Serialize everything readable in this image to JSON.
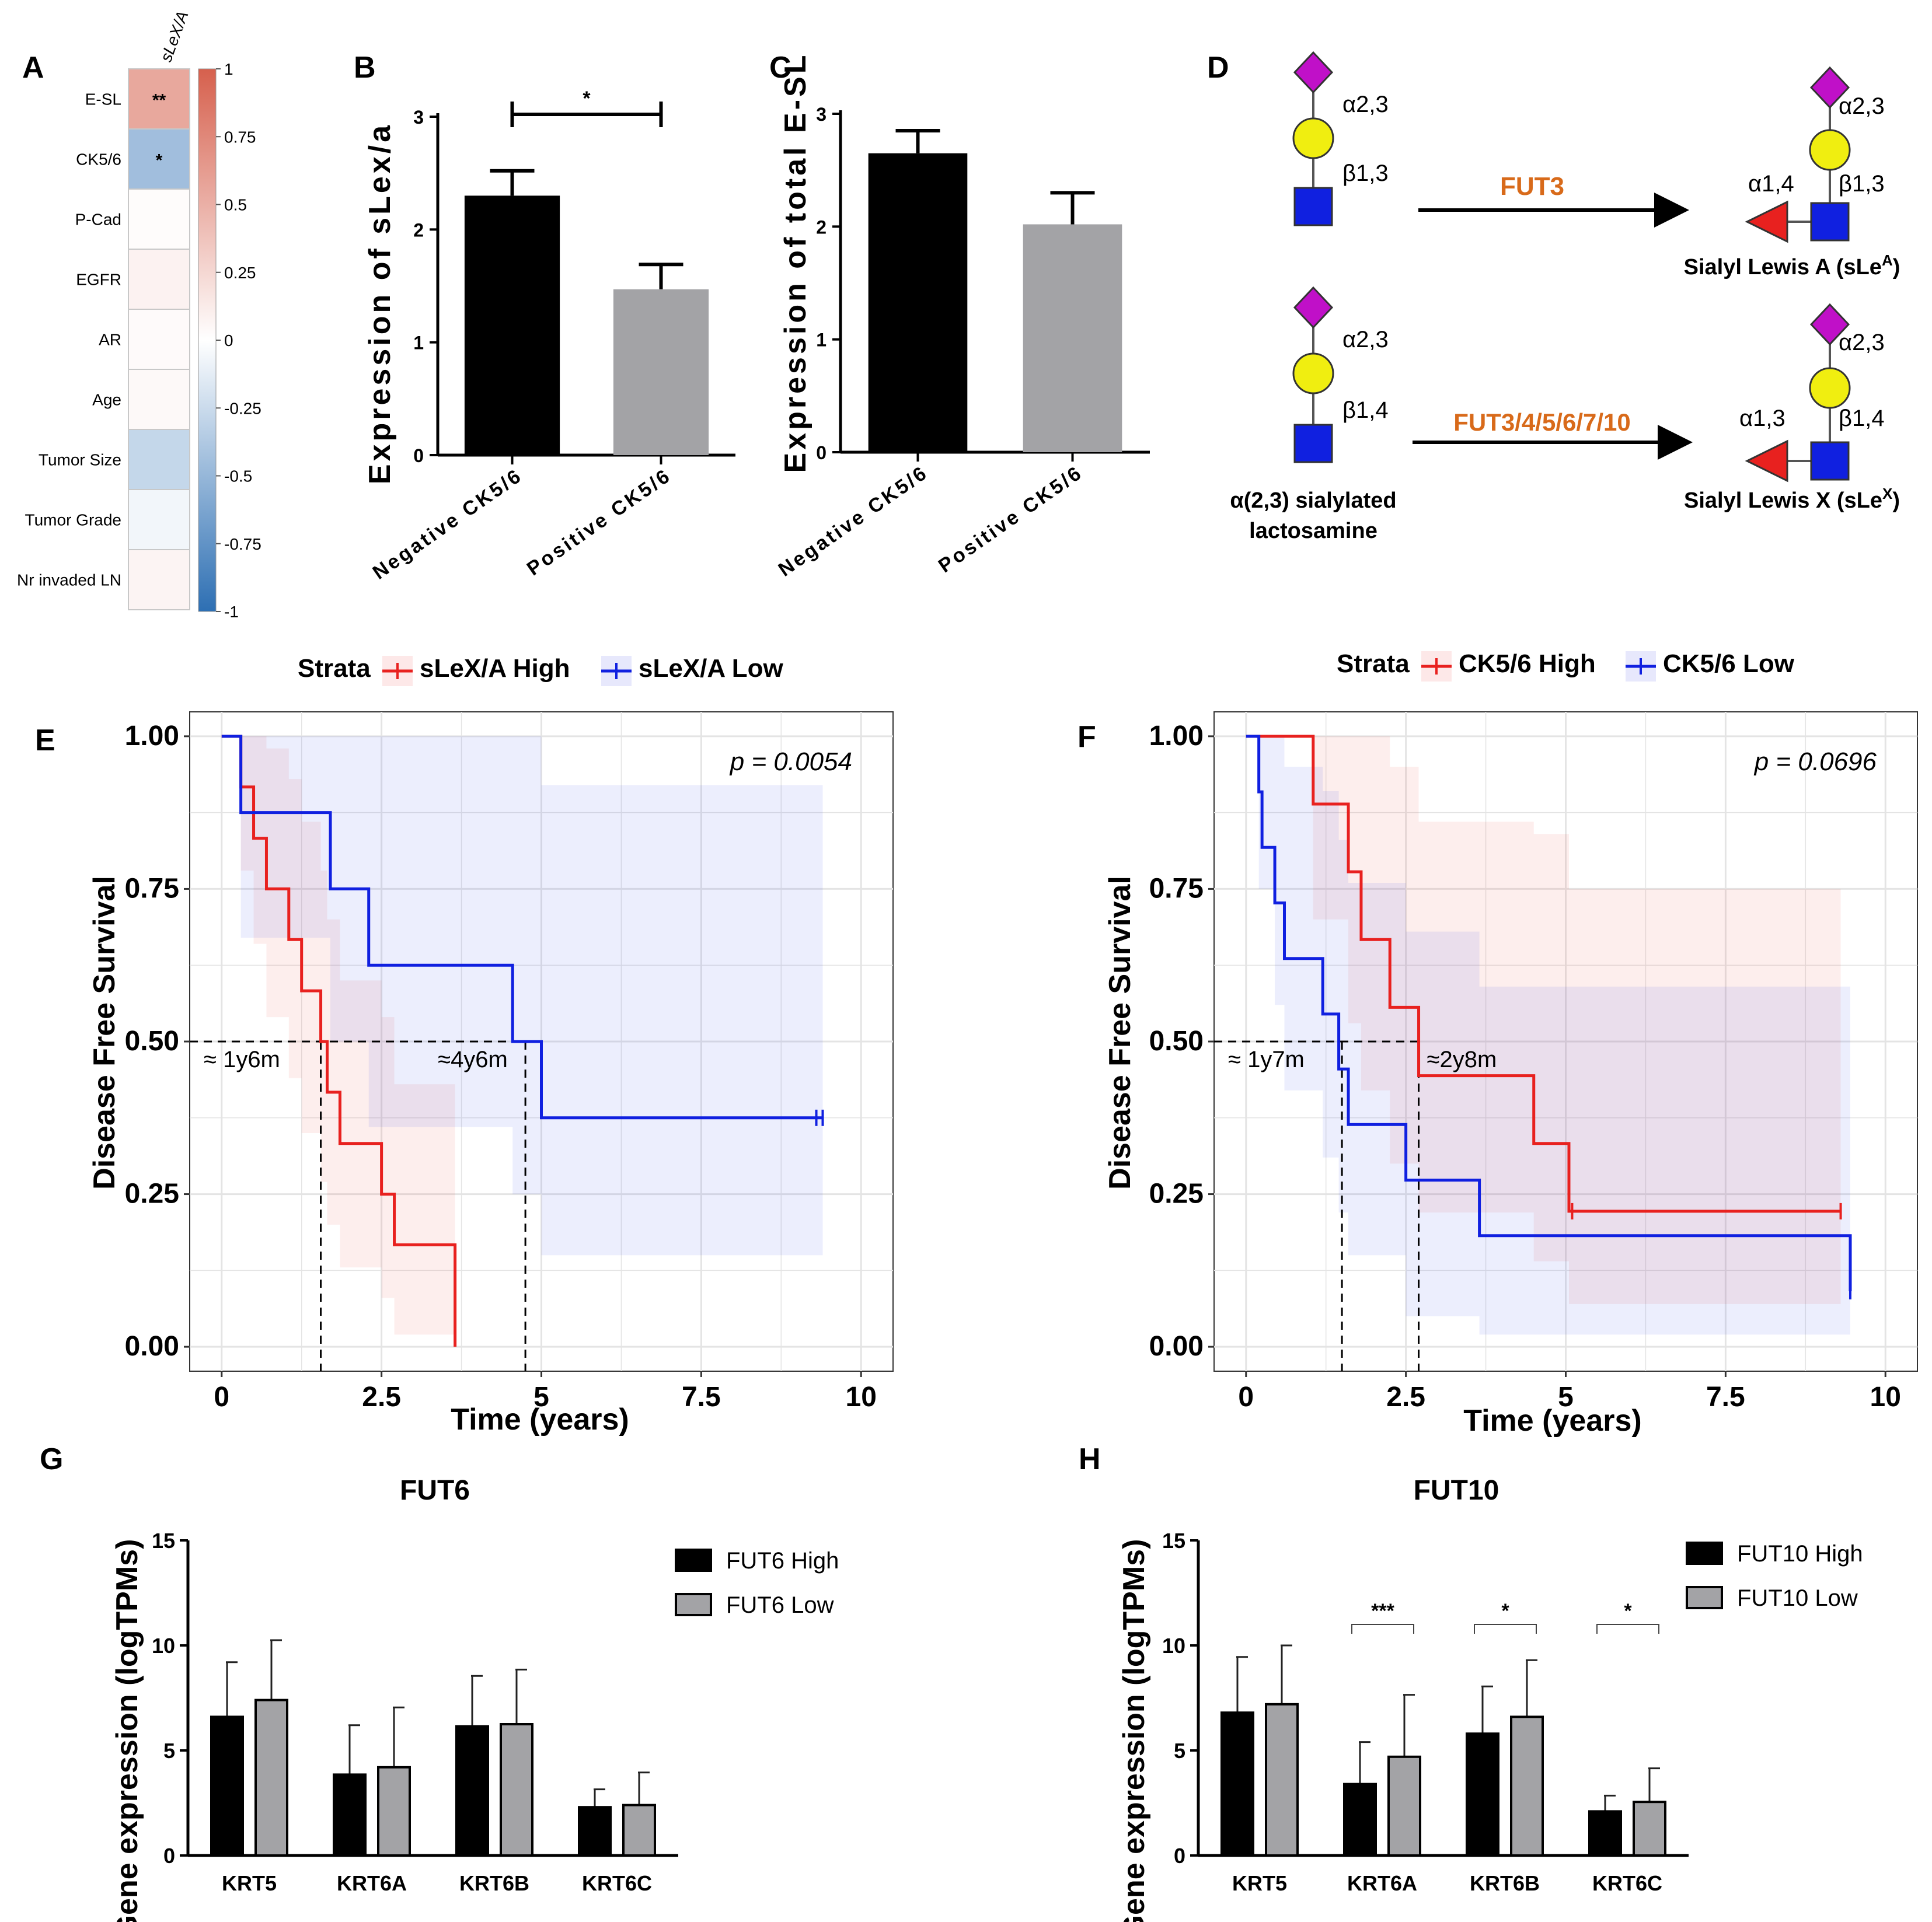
{
  "colors": {
    "red": "#e8211f",
    "blue": "#1020e0",
    "black": "#000000",
    "gray": "#a3a3a6",
    "orange": "#d86a1a",
    "magenta": "#c010c8",
    "yellow": "#f0ee10",
    "gridline": "#e4e4e4"
  },
  "panel_labels": {
    "a": "A",
    "b": "B",
    "c": "C",
    "d": "D",
    "e": "E",
    "f": "F",
    "g": "G",
    "h": "H"
  },
  "chart_data": [
    {
      "id": "A",
      "type": "heatmap",
      "column_label": "sLeX/A",
      "rows": [
        "E-SL",
        "CK5/6",
        "P-Cad",
        "EGFR",
        "AR",
        "Age",
        "Tumor Size",
        "Tumor Grade",
        "Nr invaded LN"
      ],
      "values": [
        0.55,
        -0.45,
        0.02,
        0.08,
        0.03,
        0.04,
        -0.28,
        -0.06,
        0.07
      ],
      "annotations": [
        "**",
        "*",
        "",
        "",
        "",
        "",
        "",
        "",
        ""
      ],
      "colorbar": {
        "range": [
          -1,
          1
        ],
        "ticks": [
          "1",
          "0.75",
          "0.5",
          "0.25",
          "0",
          "-0.25",
          "-0.5",
          "-0.75",
          "-1"
        ],
        "low_color": "#2d6fb3",
        "high_color": "#d6604d"
      }
    },
    {
      "id": "B",
      "type": "bar",
      "categories": [
        "Negative CK5/6",
        "Positive CK5/6"
      ],
      "values": [
        2.3,
        1.47
      ],
      "errors": [
        0.22,
        0.22
      ],
      "bar_colors": [
        "#000000",
        "#a3a3a6"
      ],
      "ylabel": "Expression of sLex/a",
      "ylim": [
        0,
        3
      ],
      "yticks": [
        "0",
        "1",
        "2",
        "3"
      ],
      "significance": "*"
    },
    {
      "id": "C",
      "type": "bar",
      "categories": [
        "Negative CK5/6",
        "Positive CK5/6"
      ],
      "values": [
        2.65,
        2.02
      ],
      "errors": [
        0.2,
        0.28
      ],
      "bar_colors": [
        "#000000",
        "#a3a3a6"
      ],
      "ylabel": "Expression of total E-SL",
      "ylim": [
        0,
        3
      ],
      "yticks": [
        "0",
        "1",
        "2",
        "3"
      ]
    },
    {
      "id": "E",
      "type": "line",
      "subtype": "kaplan-meier",
      "legend_title": "Strata",
      "xlabel": "Time (years)",
      "ylabel": "Disease Free Survival",
      "xlim": [
        -0.5,
        10.5
      ],
      "ylim": [
        -0.04,
        1.04
      ],
      "xticks": [
        "0",
        "2.5",
        "5",
        "7.5",
        "10"
      ],
      "yticks": [
        "0.00",
        "0.25",
        "0.50",
        "0.75",
        "1.00"
      ],
      "p_value": "p = 0.0054",
      "series": [
        {
          "name": "sLeX/A High",
          "color": "#e8211f",
          "x": [
            0,
            0.3,
            0.5,
            0.7,
            1.05,
            1.25,
            1.55,
            1.65,
            1.85,
            2.5,
            2.7,
            3.65
          ],
          "y": [
            1.0,
            0.917,
            0.833,
            0.75,
            0.667,
            0.583,
            0.5,
            0.417,
            0.333,
            0.25,
            0.167,
            0.083
          ],
          "end_x": 3.65,
          "end_y": 0.0,
          "censor_x": [],
          "ci_x": [
            0,
            0.3,
            0.5,
            0.7,
            1.05,
            1.25,
            1.55,
            1.65,
            1.85,
            2.5,
            2.7,
            3.65
          ],
          "ci_lo": [
            1.0,
            0.78,
            0.66,
            0.54,
            0.44,
            0.35,
            0.27,
            0.2,
            0.13,
            0.08,
            0.02,
            0.0
          ],
          "ci_hi": [
            1.0,
            1.0,
            1.0,
            0.98,
            0.93,
            0.86,
            0.78,
            0.7,
            0.6,
            0.54,
            0.43,
            0.0
          ],
          "median_label": "≈ 1y6m",
          "median_x": 1.55
        },
        {
          "name": "sLeX/A Low",
          "color": "#1020e0",
          "x": [
            0,
            0.3,
            1.7,
            2.3,
            4.55,
            5.0
          ],
          "y": [
            1.0,
            0.875,
            0.75,
            0.625,
            0.5,
            0.375
          ],
          "end_x": 9.4,
          "end_y": 0.375,
          "censor_x": [
            9.3,
            9.4
          ],
          "ci_x": [
            0,
            0.3,
            1.7,
            2.3,
            4.55,
            5.0,
            9.4
          ],
          "ci_lo": [
            1.0,
            0.67,
            0.5,
            0.36,
            0.25,
            0.15,
            0.15
          ],
          "ci_hi": [
            1.0,
            1.0,
            1.0,
            1.0,
            1.0,
            0.92,
            0.92
          ],
          "median_label": "≈4y6m",
          "median_x": 4.75
        }
      ]
    },
    {
      "id": "F",
      "type": "line",
      "subtype": "kaplan-meier",
      "legend_title": "Strata",
      "xlabel": "Time (years)",
      "ylabel": "Disease Free Survival",
      "xlim": [
        -0.5,
        10.5
      ],
      "ylim": [
        -0.04,
        1.04
      ],
      "xticks": [
        "0",
        "2.5",
        "5",
        "7.5",
        "10"
      ],
      "yticks": [
        "0.00",
        "0.25",
        "0.50",
        "0.75",
        "1.00"
      ],
      "p_value": "p = 0.0696",
      "series": [
        {
          "name": "CK5/6 High",
          "color": "#e8211f",
          "x": [
            0,
            1.05,
            1.6,
            1.8,
            2.25,
            2.7,
            4.5,
            5.05
          ],
          "y": [
            1.0,
            0.889,
            0.778,
            0.667,
            0.556,
            0.444,
            0.333,
            0.222
          ],
          "end_x": 9.3,
          "end_y": 0.222,
          "censor_x": [
            5.1,
            9.3
          ],
          "ci_x": [
            0,
            1.05,
            1.6,
            1.8,
            2.25,
            2.7,
            4.5,
            5.05,
            9.3
          ],
          "ci_lo": [
            1.0,
            0.7,
            0.53,
            0.42,
            0.3,
            0.22,
            0.14,
            0.07,
            0.07
          ],
          "ci_hi": [
            1.0,
            1.0,
            1.0,
            1.0,
            0.95,
            0.86,
            0.84,
            0.75,
            0.75
          ],
          "median_label": "≈2y8m",
          "median_x": 2.7
        },
        {
          "name": "CK5/6 Low",
          "color": "#1020e0",
          "x": [
            0,
            0.2,
            0.25,
            0.45,
            0.6,
            1.2,
            1.45,
            1.6,
            2.5,
            3.65
          ],
          "y": [
            1.0,
            0.909,
            0.818,
            0.727,
            0.636,
            0.545,
            0.455,
            0.364,
            0.273,
            0.182
          ],
          "end_x": 9.45,
          "end_y": 0.091,
          "censor_x": [
            9.45
          ],
          "step_final_x": 3.65,
          "step_final_y": 0.091,
          "ci_x": [
            0,
            0.2,
            0.45,
            0.6,
            1.2,
            1.45,
            1.6,
            2.5,
            3.65,
            9.45
          ],
          "ci_lo": [
            1.0,
            0.75,
            0.56,
            0.42,
            0.31,
            0.22,
            0.15,
            0.05,
            0.02,
            0.02
          ],
          "ci_hi": [
            1.0,
            1.0,
            1.0,
            0.95,
            0.91,
            0.83,
            0.76,
            0.68,
            0.59,
            0.59
          ],
          "median_label": "≈ 1y7m",
          "median_x": 1.5
        }
      ]
    },
    {
      "id": "G",
      "type": "bar",
      "title": "FUT6",
      "categories": [
        "KRT5",
        "KRT6A",
        "KRT6B",
        "KRT6C"
      ],
      "series": [
        {
          "name": "FUT6 High",
          "values": [
            6.6,
            3.85,
            6.15,
            2.3
          ],
          "errors": [
            2.6,
            2.35,
            2.4,
            0.85
          ]
        },
        {
          "name": "FUT6 Low",
          "values": [
            7.4,
            4.2,
            6.25,
            2.4
          ],
          "errors": [
            2.85,
            2.85,
            2.6,
            1.55
          ]
        }
      ],
      "ylabel": "Gene expression (logTPMs)",
      "ylim": [
        0,
        15
      ],
      "yticks": [
        "0",
        "5",
        "10",
        "15"
      ]
    },
    {
      "id": "H",
      "type": "bar",
      "title": "FUT10",
      "categories": [
        "KRT5",
        "KRT6A",
        "KRT6B",
        "KRT6C"
      ],
      "series": [
        {
          "name": "FUT10 High",
          "values": [
            6.8,
            3.4,
            5.8,
            2.1
          ],
          "errors": [
            2.65,
            2.0,
            2.25,
            0.75
          ]
        },
        {
          "name": "FUT10 Low",
          "values": [
            7.2,
            4.7,
            6.6,
            2.55
          ],
          "errors": [
            2.8,
            2.95,
            2.7,
            1.6
          ]
        }
      ],
      "significance": [
        "",
        "***",
        "*",
        "*"
      ],
      "ylabel": "Gene expression (logTPMs)",
      "ylim": [
        0,
        15
      ],
      "yticks": [
        "0",
        "5",
        "10",
        "15"
      ]
    }
  ],
  "schematic_d": {
    "arrow1_label": "FUT3",
    "arrow2_label": "FUT3/4/5/6/7/10",
    "left_link_top_1": "α2,3",
    "left_link_bottom_1": "β1,3",
    "left_link_top_2": "α2,3",
    "left_link_bottom_2": "β1,4",
    "right_link_top_1": "α2,3",
    "right_link_fuc_1": "α1,4",
    "right_link_bottom_1": "β1,3",
    "right_link_top_2": "α2,3",
    "right_link_fuc_2": "α1,3",
    "right_link_bottom_2": "β1,4",
    "product1_name": "Sialyl Lewis A (sLe",
    "product1_sup": "A",
    "product1_close": ")",
    "product2_name": "Sialyl Lewis X (sLe",
    "product2_sup": "X",
    "product2_close": ")",
    "substrate_line1": "α(2,3) sialylated",
    "substrate_line2": "lactosamine"
  }
}
